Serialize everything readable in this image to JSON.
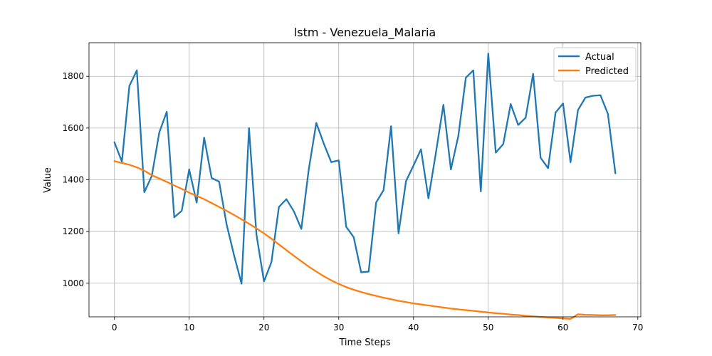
{
  "chart_data": {
    "type": "line",
    "title": "lstm - Venezuela_Malaria",
    "xlabel": "Time Steps",
    "ylabel": "Value",
    "xlim": [
      -3.4,
      70.4
    ],
    "ylim": [
      870,
      1930
    ],
    "xticks": [
      0,
      10,
      20,
      30,
      40,
      50,
      60,
      70
    ],
    "yticks": [
      1000,
      1200,
      1400,
      1600,
      1800
    ],
    "grid": true,
    "legend_position": "top-right",
    "series": [
      {
        "name": "Actual",
        "color": "#1f77b4",
        "x": [
          0,
          1,
          2,
          3,
          4,
          5,
          6,
          7,
          8,
          9,
          10,
          11,
          12,
          13,
          14,
          15,
          16,
          17,
          18,
          19,
          20,
          21,
          22,
          23,
          24,
          25,
          26,
          27,
          28,
          29,
          30,
          31,
          32,
          33,
          34,
          35,
          36,
          37,
          38,
          39,
          40,
          41,
          42,
          43,
          44,
          45,
          46,
          47,
          48,
          49,
          50,
          51,
          52,
          53,
          54,
          55,
          56,
          57,
          58,
          59,
          60,
          61,
          62,
          63,
          64,
          65,
          66,
          67
        ],
        "values": [
          1545,
          1470,
          1763,
          1823,
          1352,
          1415,
          1583,
          1663,
          1255,
          1280,
          1440,
          1312,
          1563,
          1407,
          1393,
          1228,
          1108,
          998,
          1600,
          1187,
          1007,
          1082,
          1295,
          1325,
          1278,
          1210,
          1442,
          1620,
          1540,
          1468,
          1475,
          1218,
          1178,
          1042,
          1045,
          1312,
          1360,
          1607,
          1193,
          1395,
          1455,
          1518,
          1328,
          1505,
          1690,
          1440,
          1570,
          1795,
          1823,
          1355,
          1888,
          1505,
          1538,
          1693,
          1612,
          1640,
          1810,
          1485,
          1445,
          1660,
          1695,
          1468,
          1670,
          1718,
          1725,
          1727,
          1655,
          1425
        ]
      },
      {
        "name": "Predicted",
        "color": "#ff7f0e",
        "x": [
          0,
          1,
          2,
          3,
          4,
          5,
          6,
          7,
          8,
          9,
          10,
          11,
          12,
          13,
          14,
          15,
          16,
          17,
          18,
          19,
          20,
          21,
          22,
          23,
          24,
          25,
          26,
          27,
          28,
          29,
          30,
          31,
          32,
          33,
          34,
          35,
          36,
          37,
          38,
          39,
          40,
          41,
          42,
          43,
          44,
          45,
          46,
          47,
          48,
          49,
          50,
          51,
          52,
          53,
          54,
          55,
          56,
          57,
          58,
          59,
          60,
          61,
          62,
          63,
          64,
          65,
          66,
          67
        ],
        "values": [
          1472,
          1465,
          1458,
          1448,
          1435,
          1418,
          1405,
          1392,
          1378,
          1365,
          1350,
          1338,
          1325,
          1310,
          1295,
          1280,
          1264,
          1247,
          1230,
          1212,
          1193,
          1172,
          1150,
          1128,
          1106,
          1085,
          1064,
          1045,
          1027,
          1011,
          997,
          985,
          975,
          966,
          958,
          951,
          944,
          938,
          932,
          927,
          922,
          918,
          914,
          910,
          906,
          902,
          899,
          896,
          893,
          890,
          887,
          884,
          882,
          879,
          877,
          874,
          872,
          870,
          868,
          866,
          864,
          862,
          880,
          878,
          877,
          876,
          876,
          877
        ]
      }
    ]
  }
}
